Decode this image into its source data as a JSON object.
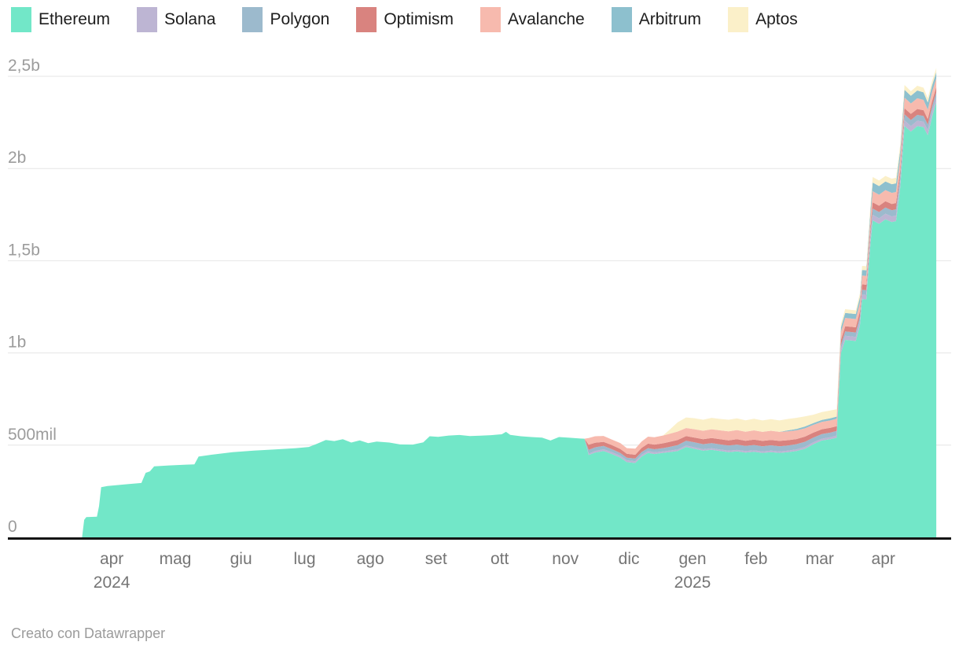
{
  "legend": {
    "items": [
      {
        "label": "Ethereum",
        "color": "#72E7C8"
      },
      {
        "label": "Solana",
        "color": "#BDB5D3"
      },
      {
        "label": "Polygon",
        "color": "#9CBACD"
      },
      {
        "label": "Optimism",
        "color": "#D9837F"
      },
      {
        "label": "Avalanche",
        "color": "#F7BAAE"
      },
      {
        "label": "Arbitrum",
        "color": "#8DC0CE"
      },
      {
        "label": "Aptos",
        "color": "#FBF0C9"
      }
    ]
  },
  "footer": {
    "credit": "Creato con Datawrapper"
  },
  "chart_data": {
    "type": "area",
    "stacked": true,
    "value_unit": "millions",
    "ylim": [
      0,
      2500
    ],
    "grid": true,
    "legend_position": "top",
    "y_ticks": [
      {
        "label": "0",
        "value": 0
      },
      {
        "label": "500mil",
        "value": 500
      },
      {
        "label": "1b",
        "value": 1000
      },
      {
        "label": "1,5b",
        "value": 1500
      },
      {
        "label": "2b",
        "value": 2000
      },
      {
        "label": "2,5b",
        "value": 2500
      }
    ],
    "x_domain": [
      "2024-02-27",
      "2025-05-17"
    ],
    "x_ticks": [
      {
        "label": "apr",
        "date": "2024-04-16"
      },
      {
        "label": "mag",
        "date": "2024-05-16"
      },
      {
        "label": "giu",
        "date": "2024-06-16"
      },
      {
        "label": "lug",
        "date": "2024-07-16"
      },
      {
        "label": "ago",
        "date": "2024-08-16"
      },
      {
        "label": "set",
        "date": "2024-09-16"
      },
      {
        "label": "ott",
        "date": "2024-10-16"
      },
      {
        "label": "nov",
        "date": "2024-11-16"
      },
      {
        "label": "dic",
        "date": "2024-12-16"
      },
      {
        "label": "gen",
        "date": "2025-01-15"
      },
      {
        "label": "feb",
        "date": "2025-02-14"
      },
      {
        "label": "mar",
        "date": "2025-03-16"
      },
      {
        "label": "apr",
        "date": "2025-04-15"
      }
    ],
    "year_ticks": [
      {
        "label": "2024",
        "date": "2024-04-16"
      },
      {
        "label": "2025",
        "date": "2025-01-15"
      }
    ],
    "x": [
      "2024-04-02",
      "2024-04-03",
      "2024-04-04",
      "2024-04-09",
      "2024-04-10",
      "2024-04-11",
      "2024-04-14",
      "2024-04-23",
      "2024-04-30",
      "2024-05-02",
      "2024-05-04",
      "2024-05-06",
      "2024-05-13",
      "2024-05-21",
      "2024-05-25",
      "2024-05-27",
      "2024-06-02",
      "2024-06-12",
      "2024-06-22",
      "2024-07-02",
      "2024-07-12",
      "2024-07-18",
      "2024-07-22",
      "2024-07-26",
      "2024-07-30",
      "2024-08-03",
      "2024-08-07",
      "2024-08-11",
      "2024-08-15",
      "2024-08-19",
      "2024-08-25",
      "2024-08-30",
      "2024-09-05",
      "2024-09-10",
      "2024-09-13",
      "2024-09-17",
      "2024-09-22",
      "2024-09-27",
      "2024-10-02",
      "2024-10-07",
      "2024-10-12",
      "2024-10-17",
      "2024-10-19",
      "2024-10-21",
      "2024-10-26",
      "2024-10-31",
      "2024-11-05",
      "2024-11-09",
      "2024-11-13",
      "2024-11-18",
      "2024-11-23",
      "2024-11-25",
      "2024-11-27",
      "2024-11-30",
      "2024-12-04",
      "2024-12-08",
      "2024-12-12",
      "2024-12-15",
      "2024-12-19",
      "2024-12-22",
      "2024-12-25",
      "2024-12-28",
      "2025-01-01",
      "2025-01-04",
      "2025-01-08",
      "2025-01-12",
      "2025-01-16",
      "2025-01-20",
      "2025-01-24",
      "2025-01-28",
      "2025-02-01",
      "2025-02-05",
      "2025-02-09",
      "2025-02-13",
      "2025-02-17",
      "2025-02-21",
      "2025-02-25",
      "2025-03-01",
      "2025-03-05",
      "2025-03-09",
      "2025-03-13",
      "2025-03-17",
      "2025-03-21",
      "2025-03-24",
      "2025-03-26",
      "2025-03-28",
      "2025-04-02",
      "2025-04-04",
      "2025-04-05",
      "2025-04-07",
      "2025-04-09",
      "2025-04-10",
      "2025-04-13",
      "2025-04-16",
      "2025-04-19",
      "2025-04-21",
      "2025-04-23",
      "2025-04-25",
      "2025-04-28",
      "2025-05-01",
      "2025-05-04",
      "2025-05-06",
      "2025-05-08",
      "2025-05-10"
    ],
    "series": [
      {
        "name": "Ethereum",
        "color": "#72E7C8",
        "values": [
          0,
          95,
          110,
          112,
          170,
          272,
          278,
          288,
          295,
          350,
          358,
          385,
          390,
          394,
          396,
          438,
          448,
          462,
          470,
          477,
          484,
          490,
          508,
          528,
          522,
          532,
          514,
          526,
          511,
          519,
          514,
          504,
          503,
          515,
          548,
          545,
          552,
          555,
          549,
          551,
          554,
          559,
          572,
          556,
          548,
          544,
          541,
          525,
          544,
          540,
          536,
          535,
          447,
          460,
          468,
          452,
          432,
          408,
          403,
          438,
          458,
          452,
          458,
          462,
          468,
          490,
          480,
          470,
          475,
          468,
          462,
          466,
          460,
          464,
          458,
          462,
          458,
          462,
          468,
          480,
          505,
          525,
          532,
          540,
          1000,
          1071,
          1065,
          1150,
          1292,
          1290,
          1600,
          1719,
          1700,
          1725,
          1710,
          1715,
          1900,
          2231,
          2200,
          2230,
          2225,
          2180,
          2280,
          2360
        ]
      },
      {
        "name": "Solana",
        "color": "#BDB5D3",
        "values": [
          0,
          0,
          0,
          0,
          0,
          0,
          0,
          0,
          0,
          0,
          0,
          0,
          0,
          0,
          0,
          0,
          0,
          0,
          0,
          0,
          0,
          0,
          0,
          0,
          0,
          0,
          0,
          0,
          0,
          0,
          0,
          0,
          0,
          0,
          0,
          0,
          0,
          0,
          0,
          0,
          0,
          0,
          0,
          0,
          0,
          0,
          0,
          0,
          0,
          0,
          0,
          0,
          6,
          8,
          10,
          10,
          10,
          10,
          10,
          10,
          10,
          9,
          8,
          8,
          8,
          8,
          8,
          8,
          8,
          8,
          8,
          8,
          8,
          8,
          8,
          8,
          8,
          8,
          9,
          10,
          10,
          10,
          11,
          12,
          20,
          22,
          22,
          23,
          24,
          24,
          27,
          30,
          30,
          30,
          30,
          30,
          30,
          30,
          30,
          29,
          29,
          28,
          26,
          25
        ]
      },
      {
        "name": "Polygon",
        "color": "#9CBACD",
        "values": [
          0,
          0,
          0,
          0,
          0,
          0,
          0,
          0,
          0,
          0,
          0,
          0,
          0,
          0,
          0,
          0,
          0,
          0,
          0,
          0,
          0,
          0,
          0,
          0,
          0,
          0,
          0,
          0,
          0,
          0,
          0,
          0,
          0,
          0,
          0,
          0,
          0,
          0,
          0,
          0,
          0,
          0,
          0,
          0,
          0,
          0,
          0,
          0,
          0,
          0,
          0,
          0,
          21,
          20,
          18,
          16,
          15,
          14,
          14,
          15,
          16,
          17,
          18,
          20,
          24,
          26,
          27,
          27,
          28,
          28,
          28,
          29,
          28,
          29,
          28,
          29,
          28,
          28,
          28,
          28,
          26,
          25,
          25,
          25,
          23,
          24,
          24,
          25,
          26,
          26,
          30,
          34,
          34,
          34,
          34,
          34,
          34,
          33,
          33,
          32,
          31,
          30,
          29,
          28
        ]
      },
      {
        "name": "Optimism",
        "color": "#D9837F",
        "values": [
          0,
          0,
          0,
          0,
          0,
          0,
          0,
          0,
          0,
          0,
          0,
          0,
          0,
          0,
          0,
          0,
          0,
          0,
          0,
          0,
          0,
          0,
          0,
          0,
          0,
          0,
          0,
          0,
          0,
          0,
          0,
          0,
          0,
          0,
          0,
          0,
          0,
          0,
          0,
          0,
          0,
          0,
          0,
          0,
          0,
          0,
          0,
          0,
          0,
          0,
          0,
          0,
          28,
          25,
          22,
          22,
          22,
          21,
          21,
          22,
          24,
          25,
          26,
          27,
          28,
          25,
          26,
          27,
          28,
          28,
          28,
          29,
          28,
          29,
          29,
          29,
          29,
          29,
          28,
          28,
          27,
          26,
          26,
          26,
          27,
          28,
          28,
          29,
          30,
          30,
          32,
          34,
          34,
          34,
          34,
          34,
          34,
          33,
          33,
          32,
          31,
          30,
          30,
          28
        ]
      },
      {
        "name": "Avalanche",
        "color": "#F7BAAE",
        "values": [
          0,
          0,
          0,
          0,
          0,
          0,
          0,
          0,
          0,
          0,
          0,
          0,
          0,
          0,
          0,
          0,
          0,
          0,
          0,
          0,
          0,
          0,
          0,
          0,
          0,
          0,
          0,
          0,
          0,
          0,
          0,
          0,
          0,
          0,
          0,
          0,
          0,
          0,
          0,
          0,
          0,
          0,
          0,
          0,
          0,
          0,
          0,
          0,
          0,
          0,
          0,
          0,
          37,
          35,
          32,
          30,
          32,
          31,
          33,
          35,
          38,
          40,
          42,
          44,
          46,
          44,
          45,
          46,
          47,
          48,
          49,
          50,
          49,
          50,
          49,
          50,
          49,
          48,
          47,
          45,
          42,
          40,
          40,
          40,
          43,
          45,
          45,
          47,
          48,
          48,
          55,
          60,
          60,
          60,
          60,
          60,
          59,
          58,
          57,
          58,
          56,
          52,
          50,
          48
        ]
      },
      {
        "name": "Arbitrum",
        "color": "#8DC0CE",
        "values": [
          0,
          0,
          0,
          0,
          0,
          0,
          0,
          0,
          0,
          0,
          0,
          0,
          0,
          0,
          0,
          0,
          0,
          0,
          0,
          0,
          0,
          0,
          0,
          0,
          0,
          0,
          0,
          0,
          0,
          0,
          0,
          0,
          0,
          0,
          0,
          0,
          0,
          0,
          0,
          0,
          0,
          0,
          0,
          0,
          0,
          0,
          0,
          0,
          0,
          0,
          0,
          0,
          0,
          0,
          0,
          0,
          0,
          0,
          0,
          0,
          0,
          0,
          0,
          0,
          0,
          0,
          0,
          0,
          0,
          0,
          0,
          0,
          0,
          0,
          0,
          0,
          0,
          5,
          8,
          10,
          10,
          11,
          12,
          12,
          25,
          27,
          27,
          29,
          30,
          30,
          40,
          47,
          47,
          47,
          47,
          47,
          45,
          42,
          41,
          42,
          41,
          38,
          35,
          33
        ]
      },
      {
        "name": "Aptos",
        "color": "#FBF0C9",
        "values": [
          0,
          0,
          0,
          0,
          0,
          0,
          0,
          0,
          0,
          0,
          0,
          0,
          0,
          0,
          0,
          0,
          0,
          0,
          0,
          0,
          0,
          0,
          0,
          0,
          0,
          0,
          0,
          0,
          0,
          0,
          0,
          0,
          0,
          0,
          0,
          0,
          0,
          0,
          0,
          0,
          0,
          0,
          0,
          0,
          0,
          0,
          0,
          0,
          0,
          0,
          0,
          0,
          0,
          0,
          0,
          0,
          0,
          0,
          0,
          0,
          0,
          0,
          0,
          20,
          50,
          57,
          60,
          60,
          62,
          62,
          63,
          63,
          62,
          63,
          62,
          63,
          62,
          62,
          60,
          55,
          45,
          42,
          42,
          40,
          19,
          20,
          20,
          21,
          22,
          22,
          26,
          30,
          30,
          30,
          30,
          30,
          29,
          26,
          25,
          26,
          25,
          24,
          23,
          23
        ]
      }
    ]
  }
}
